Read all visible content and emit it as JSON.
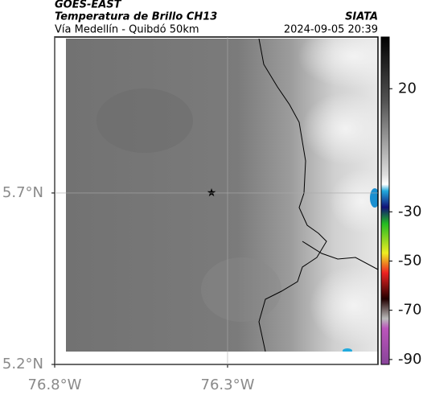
{
  "header": {
    "title": "GOES-EAST",
    "subtitle": "Temperatura de Brillo CH13",
    "route": "Vía Medellín - Quibdó 50km",
    "source": "SIATA",
    "datetime": "2024-09-05 20:39"
  },
  "map": {
    "xlim": [
      -76.8,
      -75.865
    ],
    "ylim": [
      5.2,
      6.155
    ],
    "xticks": [
      {
        "value": -76.8,
        "label": "76.8°W"
      },
      {
        "value": -76.3,
        "label": "76.3°W"
      }
    ],
    "yticks": [
      {
        "value": 5.2,
        "label": "5.2°N"
      },
      {
        "value": 5.7,
        "label": "5.7°N"
      }
    ],
    "grid": true
  },
  "colorbar": {
    "clim": [
      -92,
      41
    ],
    "ticks": [
      20,
      -30,
      -50,
      -70,
      -90
    ]
  }
}
